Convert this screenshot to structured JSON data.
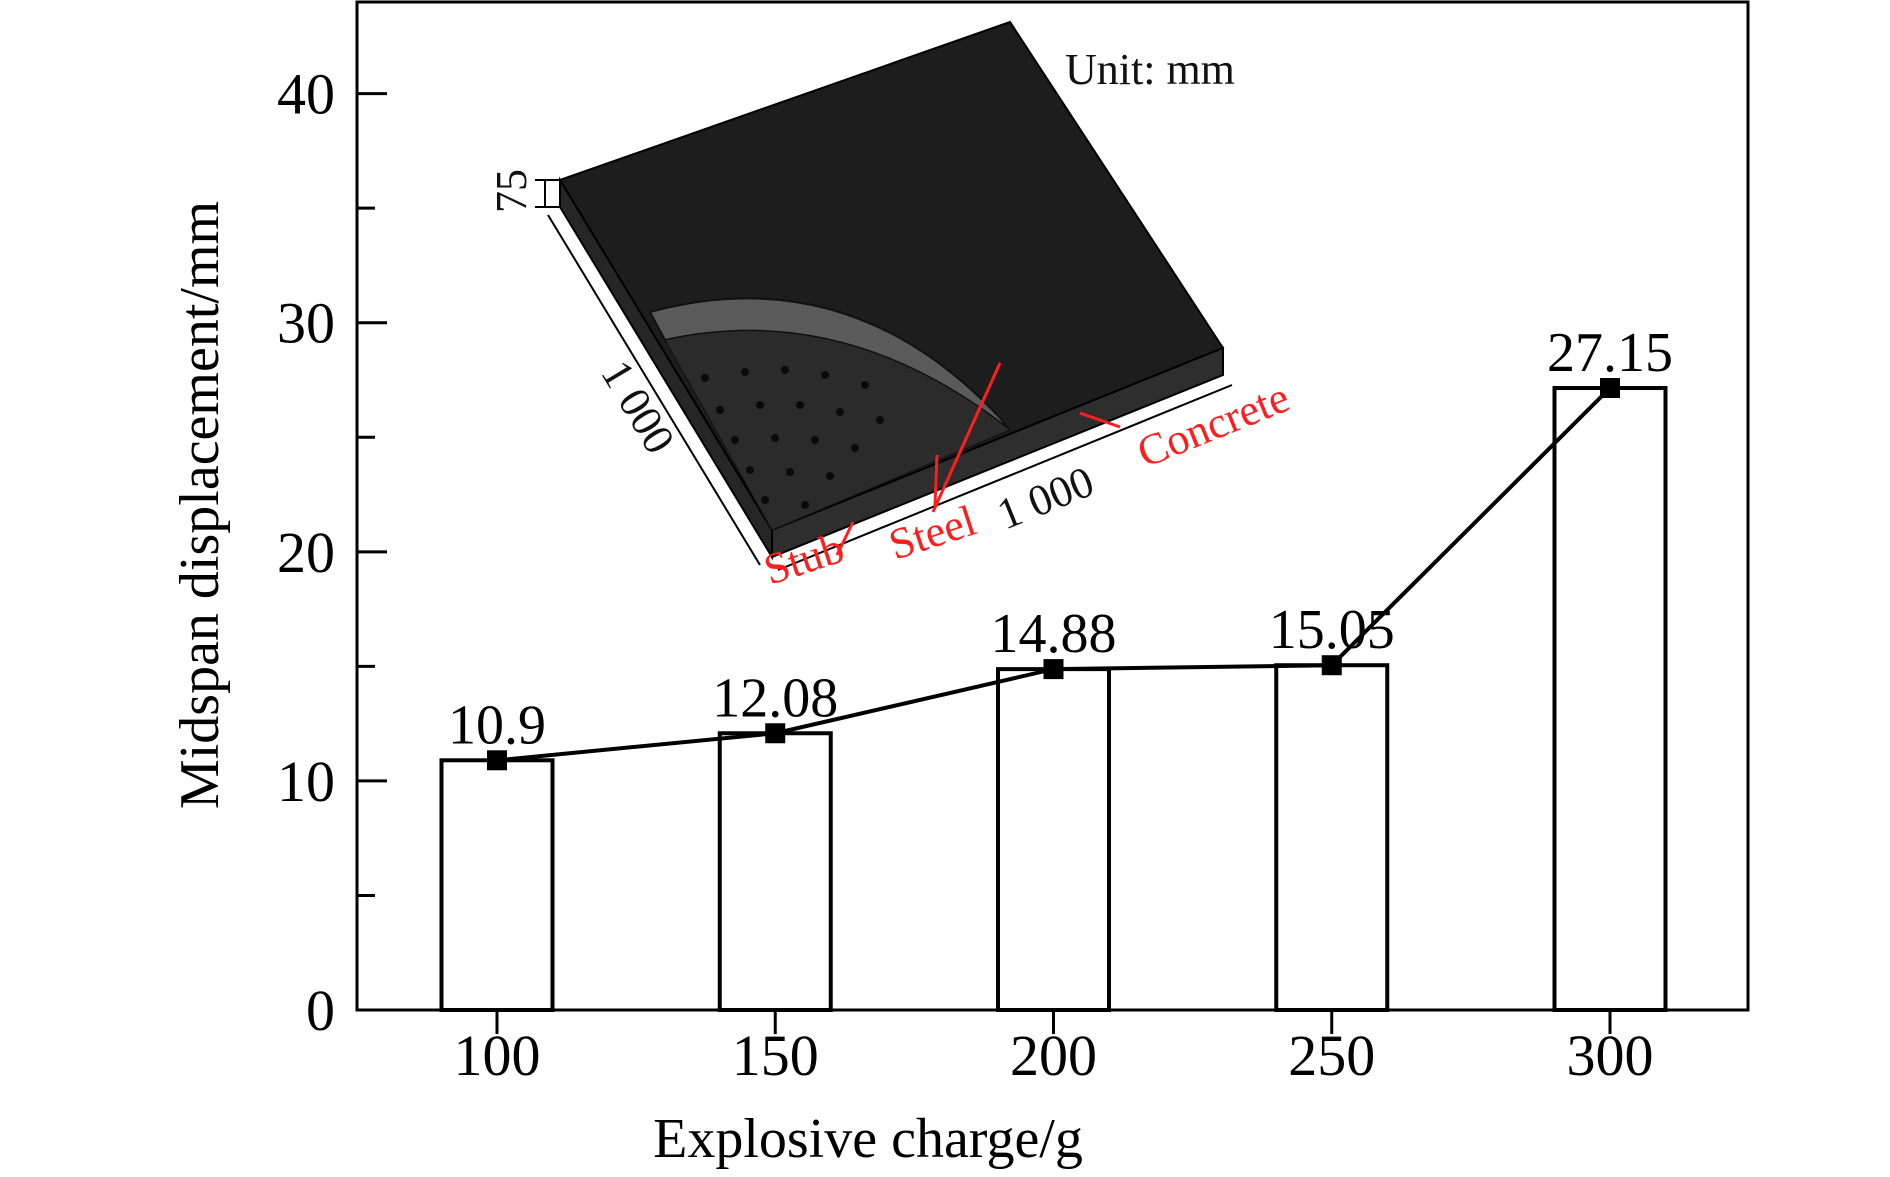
{
  "chart_data": {
    "type": "bar",
    "xlabel": "Explosive charge/g",
    "ylabel": "Midspan displacement/mm",
    "categories": [
      "100",
      "150",
      "200",
      "250",
      "300"
    ],
    "values": [
      10.9,
      12.08,
      14.88,
      15.05,
      27.15
    ],
    "data_labels": [
      "10.9",
      "12.08",
      "14.88",
      "15.05",
      "27.15"
    ],
    "ylim": [
      0,
      44
    ],
    "yticks": [
      "0",
      "10",
      "20",
      "30",
      "40"
    ],
    "overlay_line": true,
    "colors": {
      "bar_fill": "#ffffff",
      "bar_stroke": "#000000",
      "line": "#000000",
      "marker": "#000000"
    },
    "inset": {
      "unit_label": "Unit: mm",
      "dim_thickness": "75",
      "dim_width": "1 000",
      "dim_length": "1 000",
      "labels": {
        "stub": "Stub",
        "steel": "Steel",
        "concrete": "Concrete"
      },
      "label_color": "#ff1e1e"
    }
  }
}
